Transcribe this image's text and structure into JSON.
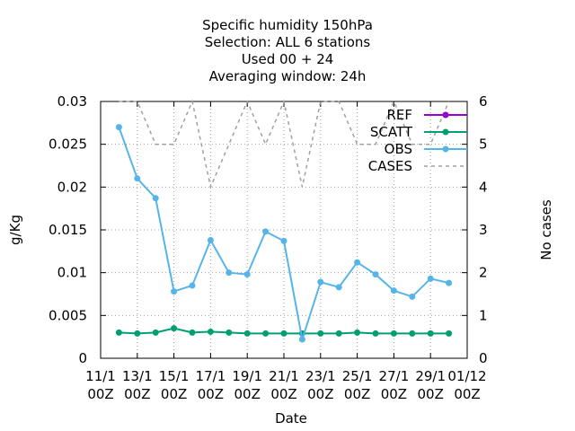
{
  "chart_data": {
    "type": "line",
    "title_lines": [
      "Specific humidity 150hPa",
      "Selection: ALL      6 stations",
      "Used  00 + 24",
      "Averaging window: 24h"
    ],
    "xlabel": "Date",
    "ylabel": "g/Kg",
    "y2label": "No cases",
    "ylim": [
      0,
      0.03
    ],
    "y2lim": [
      0,
      6
    ],
    "yticks": [
      "0",
      "0.005",
      "0.01",
      "0.015",
      "0.02",
      "0.025",
      "0.03"
    ],
    "y2ticks": [
      "0",
      "1",
      "2",
      "3",
      "4",
      "5",
      "6"
    ],
    "xticks": [
      {
        "top": "11/1",
        "bottom": "00Z"
      },
      {
        "top": "13/1",
        "bottom": "00Z"
      },
      {
        "top": "15/1",
        "bottom": "00Z"
      },
      {
        "top": "17/1",
        "bottom": "00Z"
      },
      {
        "top": "19/1",
        "bottom": "00Z"
      },
      {
        "top": "21/1",
        "bottom": "00Z"
      },
      {
        "top": "23/1",
        "bottom": "00Z"
      },
      {
        "top": "25/1",
        "bottom": "00Z"
      },
      {
        "top": "27/1",
        "bottom": "00Z"
      },
      {
        "top": "29/1",
        "bottom": "00Z"
      },
      {
        "top": "01/12",
        "bottom": "00Z"
      }
    ],
    "x_dates": [
      "12/1 00Z",
      "13/1 00Z",
      "14/1 00Z",
      "15/1 00Z",
      "16/1 00Z",
      "17/1 00Z",
      "18/1 00Z",
      "19/1 00Z",
      "20/1 00Z",
      "21/1 00Z",
      "22/1 00Z",
      "23/1 00Z",
      "24/1 00Z",
      "25/1 00Z",
      "26/1 00Z",
      "27/1 00Z",
      "28/1 00Z",
      "29/1 00Z",
      "30/1 00Z"
    ],
    "grid": true,
    "legend_position": "top-right",
    "series": [
      {
        "name": "REF",
        "axis": "y",
        "color": "#9400d3",
        "marker": "dot",
        "values": []
      },
      {
        "name": "SCATT",
        "axis": "y",
        "color": "#009e73",
        "marker": "dot",
        "values": [
          0.003,
          0.0029,
          0.003,
          0.0035,
          0.003,
          0.0031,
          0.003,
          0.0029,
          0.0029,
          0.0029,
          0.0029,
          0.0029,
          0.0029,
          0.003,
          0.0029,
          0.0029,
          0.0029,
          0.0029,
          0.0029
        ]
      },
      {
        "name": "OBS",
        "axis": "y",
        "color": "#56b4e9",
        "marker": "dot",
        "values": [
          0.027,
          0.021,
          0.0187,
          0.0078,
          0.0085,
          0.0138,
          0.01,
          0.0098,
          0.0148,
          0.0137,
          0.0022,
          0.0089,
          0.0083,
          0.0112,
          0.0098,
          0.0079,
          0.0072,
          0.0093,
          0.0088
        ]
      },
      {
        "name": "CASES",
        "axis": "y2",
        "color": "#a0a0a0",
        "dashed": true,
        "values": [
          6,
          6,
          5,
          5,
          6,
          4,
          5,
          6,
          5,
          6,
          4,
          6,
          6,
          5,
          5,
          6,
          5,
          5,
          6
        ]
      }
    ]
  }
}
